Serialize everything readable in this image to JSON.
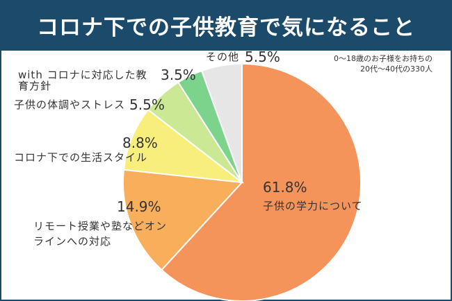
{
  "chart_data": {
    "type": "pie",
    "title": "コロナ下での子供教育で気になること",
    "note": [
      "0〜18歳のお子様をお持ちの",
      "20代〜40代の330人"
    ],
    "start": "top",
    "direction": "clockwise",
    "slices": [
      {
        "label": "子供の学力について",
        "value": 61.8,
        "value_label": "61.8%",
        "color": "#F4935A"
      },
      {
        "label": "リモート授業や塾などオンラインへの対応",
        "value": 14.9,
        "value_label": "14.9%",
        "color": "#F9AE5B"
      },
      {
        "label": "コロナ下での生活スタイル",
        "value": 8.8,
        "value_label": "8.8%",
        "color": "#F7EE7C"
      },
      {
        "label": "子供の体調やストレス",
        "value": 5.5,
        "value_label": "5.5%",
        "color": "#CBE994"
      },
      {
        "label": "with コロナに対応した教育方針",
        "value": 3.5,
        "value_label": "3.5%",
        "color": "#7BD38C"
      },
      {
        "label": "その他",
        "value": 5.5,
        "value_label": "5.5%",
        "color": "#E6E6E6"
      }
    ]
  }
}
